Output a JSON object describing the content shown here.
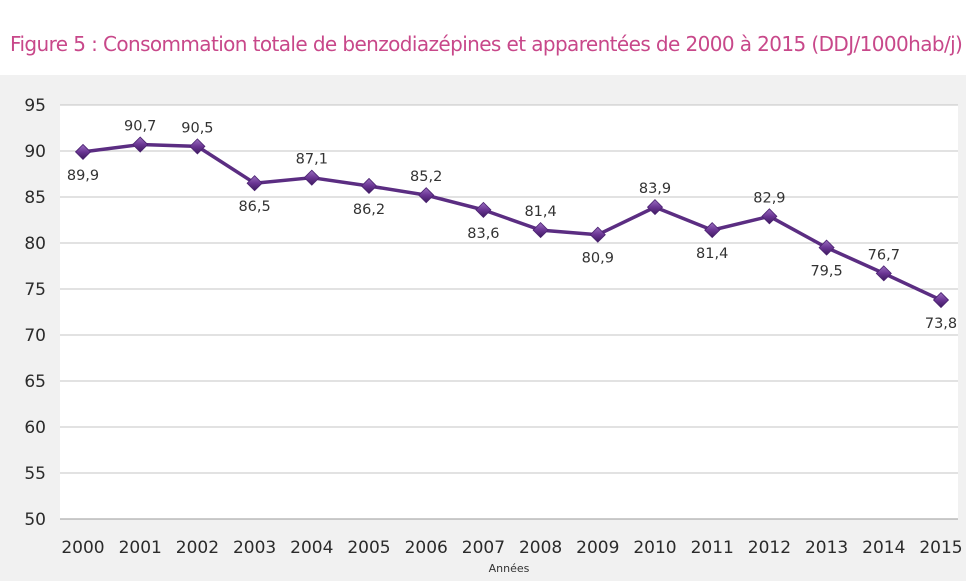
{
  "chart_data": {
    "type": "line",
    "title": "Figure 5 : Consommation totale de benzodiazépines et apparentées de 2000 à 2015 (DDJ/1000hab/j)",
    "xlabel": "Années",
    "ylabel": "",
    "categories": [
      "2000",
      "2001",
      "2002",
      "2003",
      "2004",
      "2005",
      "2006",
      "2007",
      "2008",
      "2009",
      "2010",
      "2011",
      "2012",
      "2013",
      "2014",
      "2015"
    ],
    "series": [
      {
        "values": [
          89.9,
          90.7,
          90.5,
          86.5,
          87.1,
          86.2,
          85.2,
          83.6,
          81.4,
          80.9,
          83.9,
          81.4,
          82.9,
          79.5,
          76.7,
          73.8
        ],
        "data_labels": [
          "89,9",
          "90,7",
          "90,5",
          "86,5",
          "87,1",
          "86,2",
          "85,2",
          "83,6",
          "81,4",
          "80,9",
          "83,9",
          "81,4",
          "82,9",
          "79,5",
          "76,7",
          "73,8"
        ],
        "label_position": [
          "below",
          "above",
          "above",
          "below",
          "above",
          "below",
          "above",
          "below",
          "above",
          "below",
          "above",
          "below",
          "above",
          "below",
          "above",
          "below"
        ]
      }
    ],
    "ylim": [
      50,
      95
    ],
    "yticks": [
      50,
      55,
      60,
      65,
      70,
      75,
      80,
      85,
      90,
      95
    ],
    "grid": "horizontal",
    "legend": "none"
  },
  "colors": {
    "title": "#c8488a",
    "line": "#5b2d82",
    "marker": "#6a3593",
    "grid": "#c4c4c4",
    "panel_background": "#f1f1f1",
    "plot_background": "#ffffff"
  }
}
